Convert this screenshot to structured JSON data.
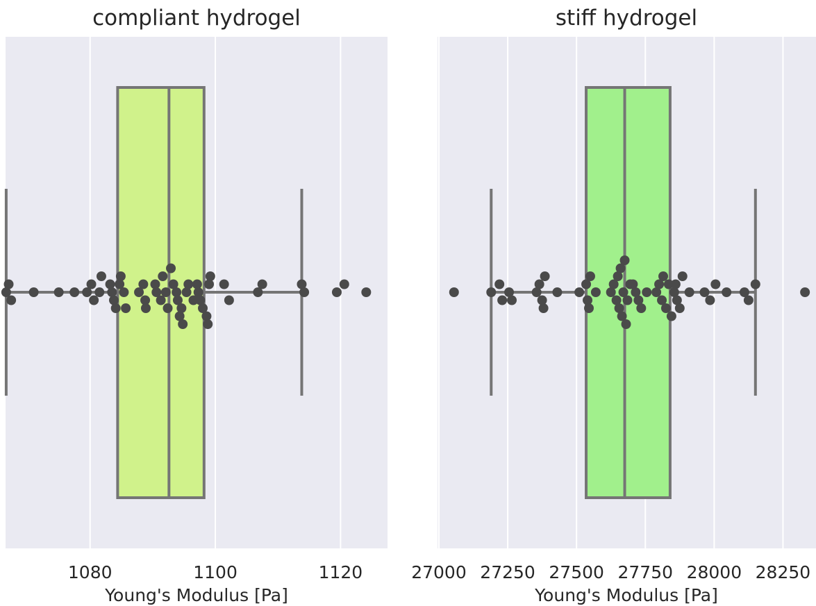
{
  "chart_data": [
    {
      "type": "box",
      "title": "compliant hydrogel",
      "xlabel": "Young's Modulus [Pa]",
      "xlim": [
        1066.5,
        1127.5
      ],
      "xticks": [
        1080,
        1100,
        1120
      ],
      "grid": true,
      "box": {
        "whisker_low": 1066.6,
        "q1": 1084.4,
        "median": 1092.6,
        "q3": 1098.2,
        "whisker_high": 1113.8,
        "color": "#d0f28b"
      },
      "points": [
        [
          1066.6,
          0
        ],
        [
          1067.0,
          -1
        ],
        [
          1067.4,
          1
        ],
        [
          1071.0,
          0
        ],
        [
          1075.0,
          0
        ],
        [
          1077.5,
          0
        ],
        [
          1079.5,
          0
        ],
        [
          1080.2,
          -1
        ],
        [
          1080.6,
          1
        ],
        [
          1081.5,
          0
        ],
        [
          1081.8,
          -2
        ],
        [
          1083.2,
          -1
        ],
        [
          1083.5,
          0
        ],
        [
          1083.8,
          1
        ],
        [
          1084.1,
          2
        ],
        [
          1084.7,
          -1
        ],
        [
          1084.9,
          -2
        ],
        [
          1085.4,
          0
        ],
        [
          1085.7,
          2
        ],
        [
          1087.8,
          0
        ],
        [
          1088.5,
          -1
        ],
        [
          1088.8,
          1
        ],
        [
          1088.9,
          2
        ],
        [
          1090.4,
          -1
        ],
        [
          1090.6,
          0
        ],
        [
          1091.3,
          1
        ],
        [
          1091.6,
          -2
        ],
        [
          1092.1,
          0
        ],
        [
          1092.4,
          2
        ],
        [
          1092.9,
          -3
        ],
        [
          1093.3,
          -1
        ],
        [
          1093.8,
          0
        ],
        [
          1094.0,
          1
        ],
        [
          1094.3,
          3
        ],
        [
          1094.6,
          2
        ],
        [
          1094.8,
          4
        ],
        [
          1095.4,
          0
        ],
        [
          1095.7,
          -1
        ],
        [
          1096.5,
          1
        ],
        [
          1097.1,
          -1
        ],
        [
          1097.3,
          0
        ],
        [
          1097.6,
          1
        ],
        [
          1098.0,
          2
        ],
        [
          1098.6,
          3
        ],
        [
          1098.8,
          4
        ],
        [
          1099.0,
          -1
        ],
        [
          1099.2,
          -2
        ],
        [
          1101.4,
          -1
        ],
        [
          1102.2,
          1
        ],
        [
          1106.8,
          0
        ],
        [
          1107.5,
          -1
        ],
        [
          1113.8,
          -1
        ],
        [
          1114.2,
          0
        ],
        [
          1119.4,
          0
        ],
        [
          1120.6,
          -1
        ],
        [
          1124.1,
          0
        ]
      ]
    },
    {
      "type": "box",
      "title": "stiff hydrogel",
      "xlabel": "Young's Modulus [Pa]",
      "xlim": [
        26995,
        28370
      ],
      "xticks": [
        27000,
        27250,
        27500,
        27750,
        28000,
        28250
      ],
      "grid": true,
      "box": {
        "whisker_low": 27190,
        "q1": 27535,
        "median": 27675,
        "q3": 27840,
        "whisker_high": 28150,
        "color": "#a1f08c"
      },
      "points": [
        [
          27055,
          0
        ],
        [
          27190,
          0
        ],
        [
          27220,
          -1
        ],
        [
          27230,
          1
        ],
        [
          27255,
          0
        ],
        [
          27265,
          1
        ],
        [
          27355,
          0
        ],
        [
          27365,
          -1
        ],
        [
          27375,
          1
        ],
        [
          27380,
          2
        ],
        [
          27385,
          -2
        ],
        [
          27430,
          0
        ],
        [
          27510,
          0
        ],
        [
          27535,
          -1
        ],
        [
          27540,
          1
        ],
        [
          27545,
          2
        ],
        [
          27550,
          -2
        ],
        [
          27570,
          0
        ],
        [
          27625,
          0
        ],
        [
          27635,
          -1
        ],
        [
          27645,
          1
        ],
        [
          27650,
          -2
        ],
        [
          27655,
          2
        ],
        [
          27660,
          -3
        ],
        [
          27665,
          3
        ],
        [
          27670,
          0
        ],
        [
          27675,
          -4
        ],
        [
          27680,
          4
        ],
        [
          27685,
          1
        ],
        [
          27695,
          -1
        ],
        [
          27705,
          -1
        ],
        [
          27715,
          0
        ],
        [
          27725,
          1
        ],
        [
          27735,
          2
        ],
        [
          27755,
          0
        ],
        [
          27790,
          0
        ],
        [
          27800,
          -1
        ],
        [
          27810,
          1
        ],
        [
          27815,
          -2
        ],
        [
          27825,
          2
        ],
        [
          27835,
          -1
        ],
        [
          27845,
          3
        ],
        [
          27855,
          0
        ],
        [
          27860,
          -1
        ],
        [
          27865,
          1
        ],
        [
          27875,
          2
        ],
        [
          27885,
          -2
        ],
        [
          27910,
          0
        ],
        [
          27965,
          0
        ],
        [
          27985,
          1
        ],
        [
          28005,
          -1
        ],
        [
          28045,
          0
        ],
        [
          28110,
          0
        ],
        [
          28125,
          1
        ],
        [
          28150,
          -1
        ],
        [
          28330,
          0
        ]
      ]
    }
  ]
}
